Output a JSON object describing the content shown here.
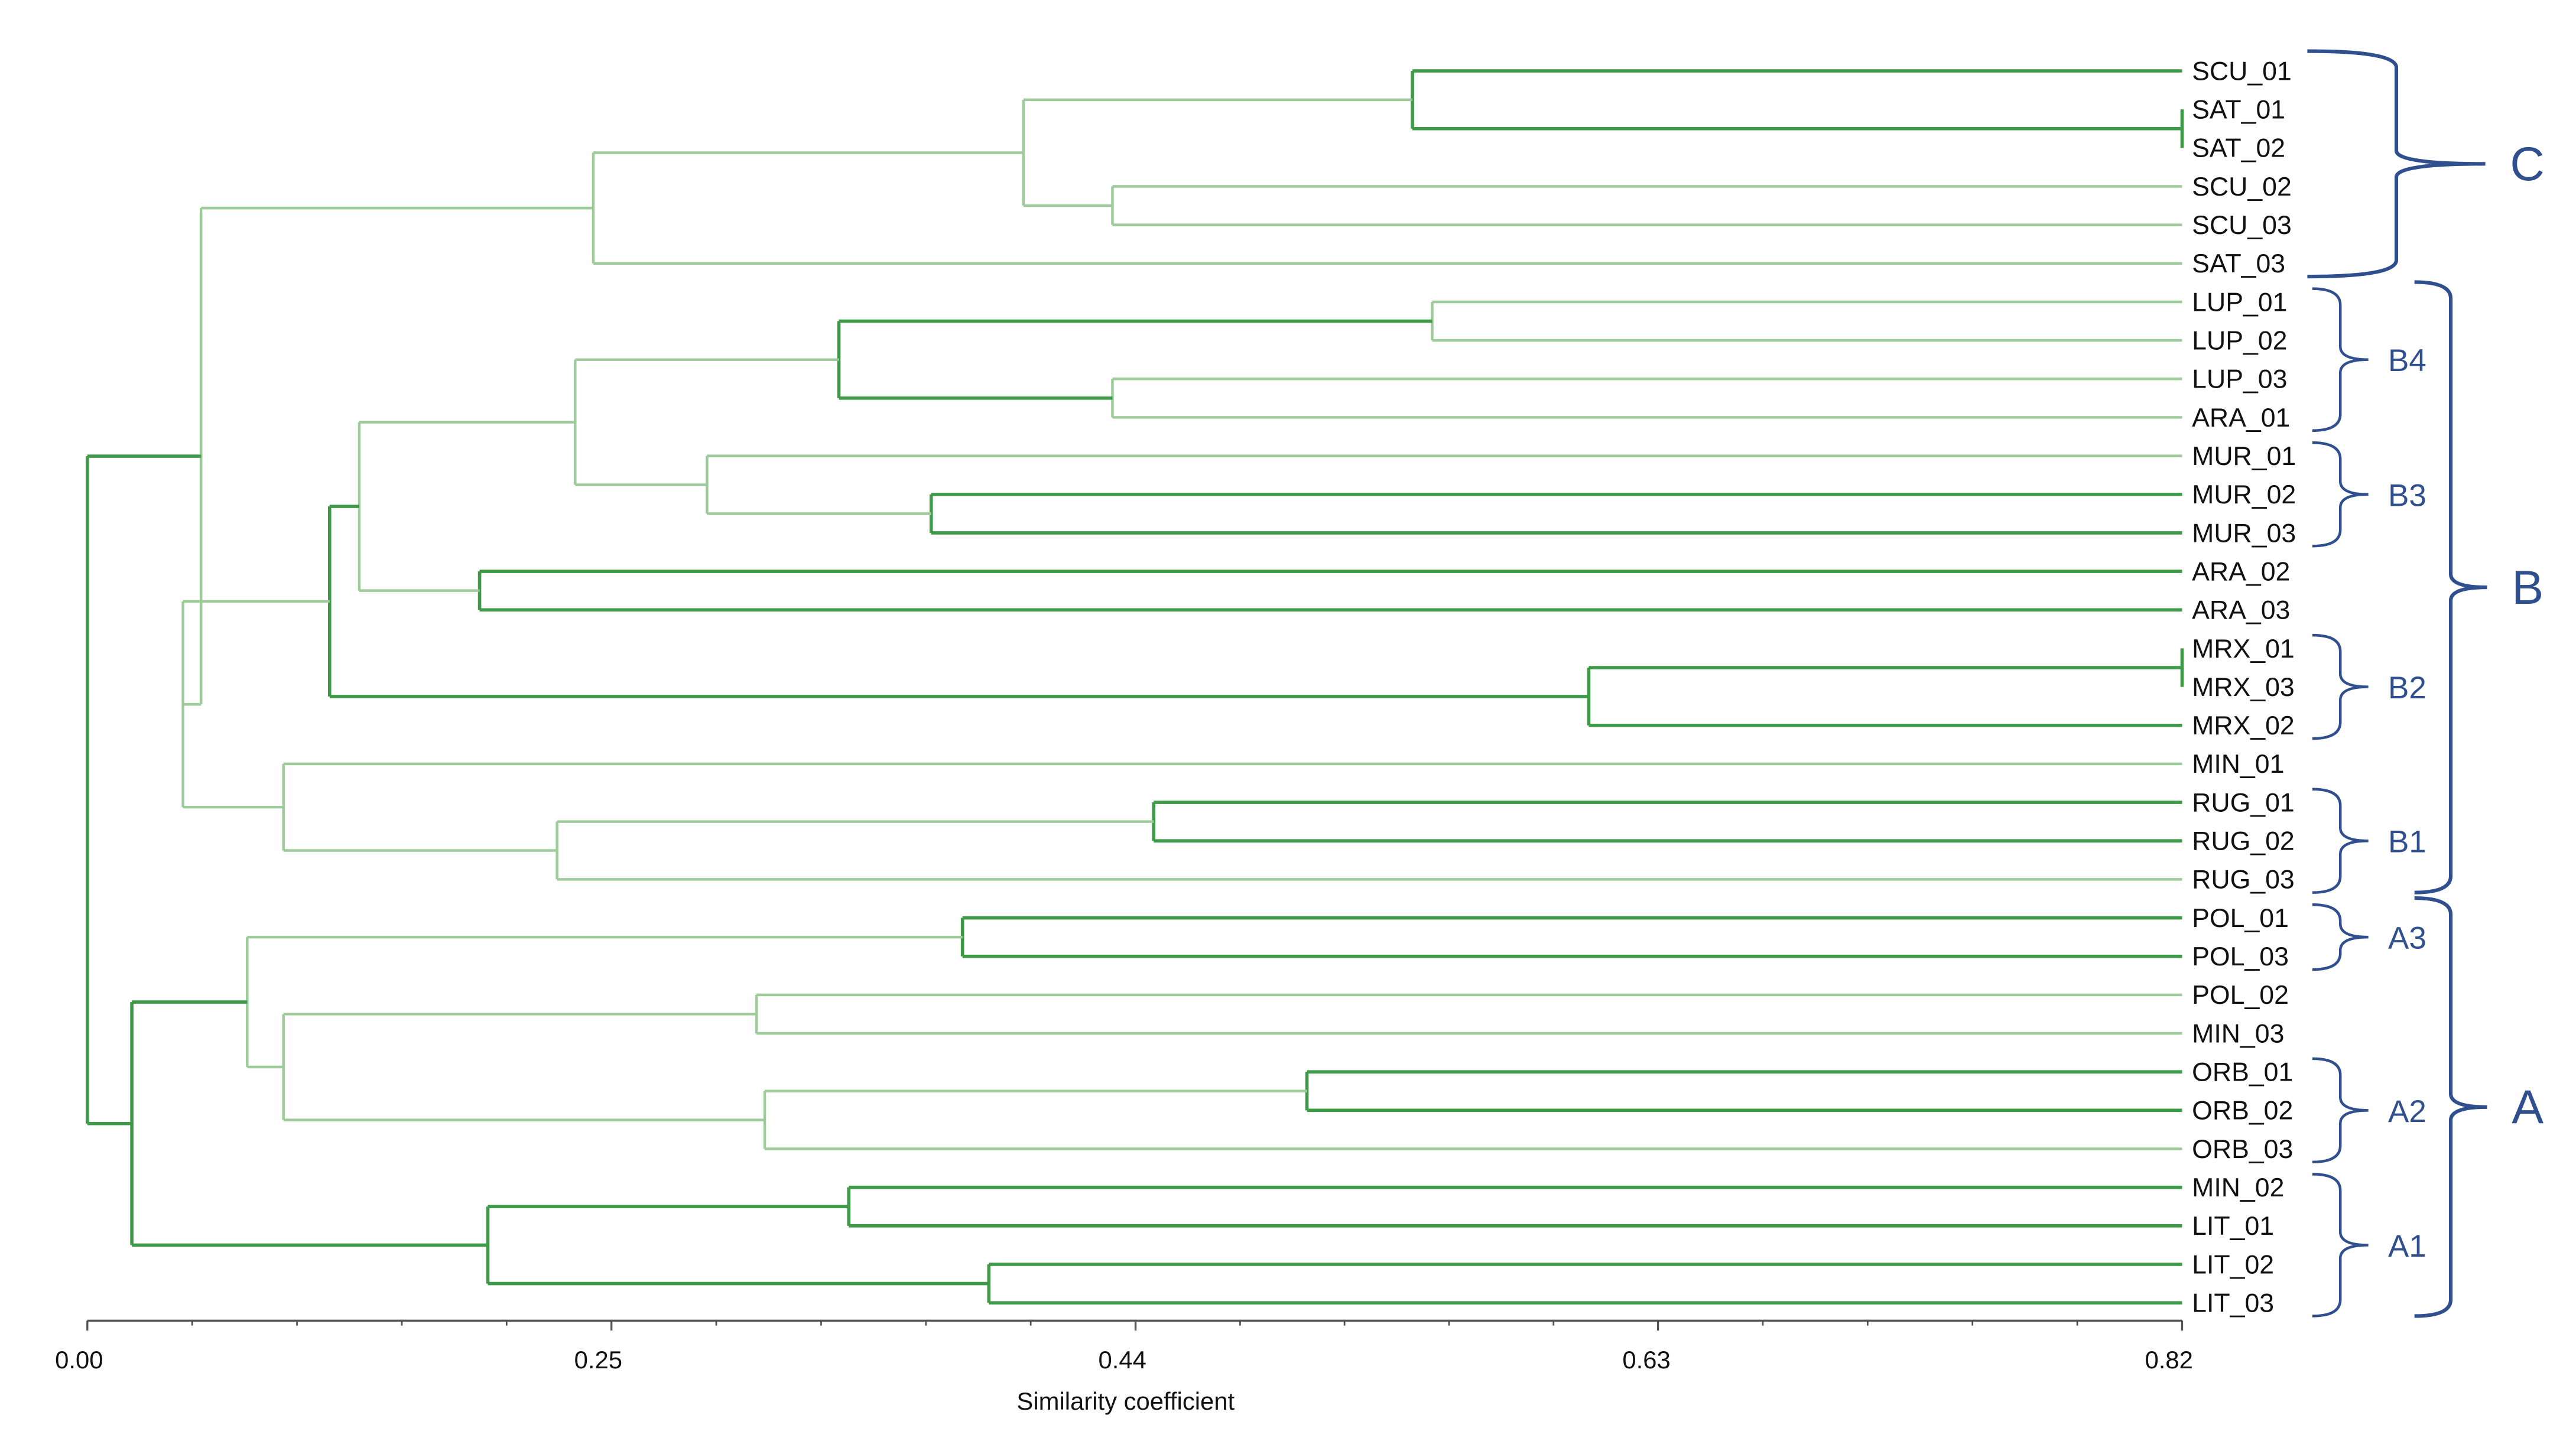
{
  "axis": {
    "label": "Similarity coefficient",
    "tick_labels": [
      "0.00",
      "0.25",
      "0.44",
      "0.63",
      "0.82"
    ]
  },
  "leaves": [
    "SCU_01",
    "SAT_01",
    "SAT_02",
    "SCU_02",
    "SCU_03",
    "SAT_03",
    "LUP_01",
    "LUP_02",
    "LUP_03",
    "ARA_01",
    "MUR_01",
    "MUR_02",
    "MUR_03",
    "ARA_02",
    "ARA_03",
    "MRX_01",
    "MRX_03",
    "MRX_02",
    "MIN_01",
    "RUG_01",
    "RUG_02",
    "RUG_03",
    "POL_01",
    "POL_03",
    "POL_02",
    "MIN_03",
    "ORB_01",
    "ORB_02",
    "ORB_03",
    "MIN_02",
    "LIT_01",
    "LIT_02",
    "LIT_03"
  ],
  "groups": {
    "major": [
      {
        "label": "C",
        "first": 0,
        "last": 5
      },
      {
        "label": "B",
        "first": 6,
        "last": 21
      },
      {
        "label": "A",
        "first": 22,
        "last": 32
      }
    ],
    "minor": [
      {
        "label": "B4",
        "first": 6,
        "last": 9
      },
      {
        "label": "B3",
        "first": 10,
        "last": 12
      },
      {
        "label": "B2",
        "first": 15,
        "last": 17
      },
      {
        "label": "B1",
        "first": 19,
        "last": 21
      },
      {
        "label": "A3",
        "first": 22,
        "last": 23
      },
      {
        "label": "A2",
        "first": 26,
        "last": 28
      },
      {
        "label": "A1",
        "first": 29,
        "last": 32
      }
    ]
  },
  "colors": {
    "branch_light": "#9dcc9a",
    "branch_dark": "#3d9a46",
    "bracket": "#2f4f8f",
    "axis": "#555555",
    "text": "#111111"
  }
}
